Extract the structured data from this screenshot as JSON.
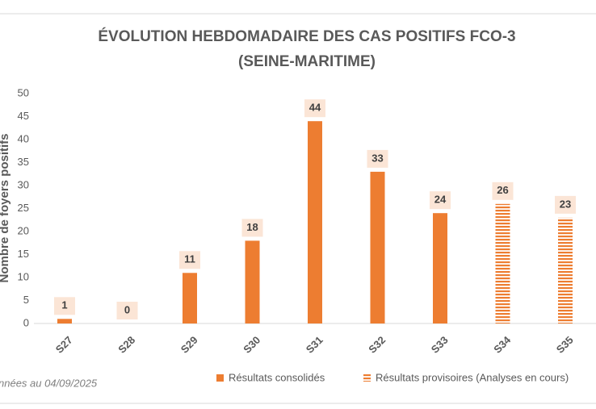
{
  "chart_data": {
    "type": "bar",
    "title": "ÉVOLUTION HEBDOMADAIRE DES CAS POSITIFS FCO-3",
    "subtitle": "(SEINE-MARITIME)",
    "y_label": "Nombre de foyers positifs",
    "note": "nnées au 04/09/2025",
    "categories": [
      "S27",
      "S28",
      "S29",
      "S30",
      "S31",
      "S32",
      "S33",
      "S34",
      "S35"
    ],
    "series": [
      {
        "name": "Résultats consolidés",
        "color": "#ed7d31",
        "pattern": "solid",
        "values": [
          1,
          0,
          11,
          18,
          44,
          33,
          24,
          null,
          null
        ]
      },
      {
        "name": "Résultats provisoires (Analyses en cours)",
        "color": "#ed7d31",
        "pattern": "stripes",
        "values": [
          null,
          null,
          null,
          null,
          null,
          null,
          null,
          26,
          23
        ]
      }
    ],
    "ylim": [
      0,
      50
    ],
    "yticks": [
      0,
      5,
      10,
      15,
      20,
      25,
      30,
      35,
      40,
      45,
      50
    ],
    "grid": false
  }
}
